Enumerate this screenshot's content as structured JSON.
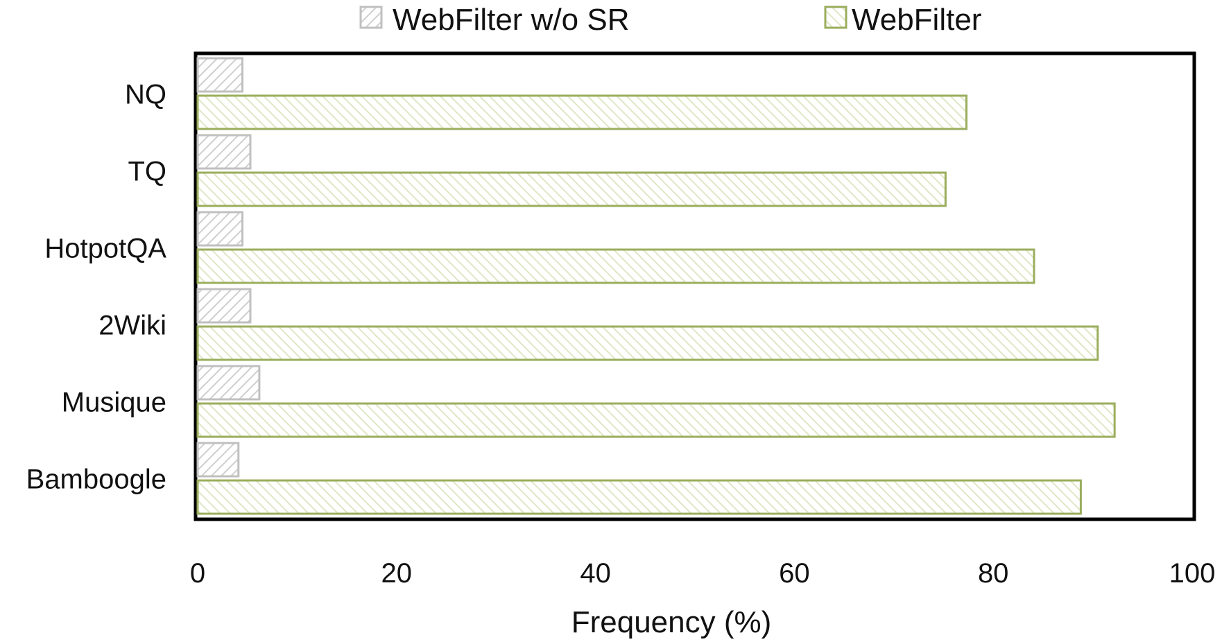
{
  "chart_data": {
    "type": "bar",
    "orientation": "horizontal",
    "categories": [
      "NQ",
      "TQ",
      "HotpotQA",
      "2Wiki",
      "Musique",
      "Bamboogle"
    ],
    "series": [
      {
        "name": "WebFilter w/o SR",
        "values": [
          4.5,
          5.3,
          4.5,
          5.3,
          6.2,
          4.1
        ],
        "color": "#c0c0c0",
        "pattern": "hatch-diagonal-down"
      },
      {
        "name": "WebFilter",
        "values": [
          77.3,
          75.2,
          84.1,
          90.5,
          92.2,
          88.8
        ],
        "color": "#9aae5c",
        "pattern": "hatch-diagonal-up"
      }
    ],
    "xlabel": "Frequency (%)",
    "ylabel": "",
    "xlim": [
      0,
      100
    ],
    "xticks": [
      "0",
      "20",
      "40",
      "60",
      "80",
      "100"
    ],
    "grid": false,
    "legend_position": "top-center"
  }
}
